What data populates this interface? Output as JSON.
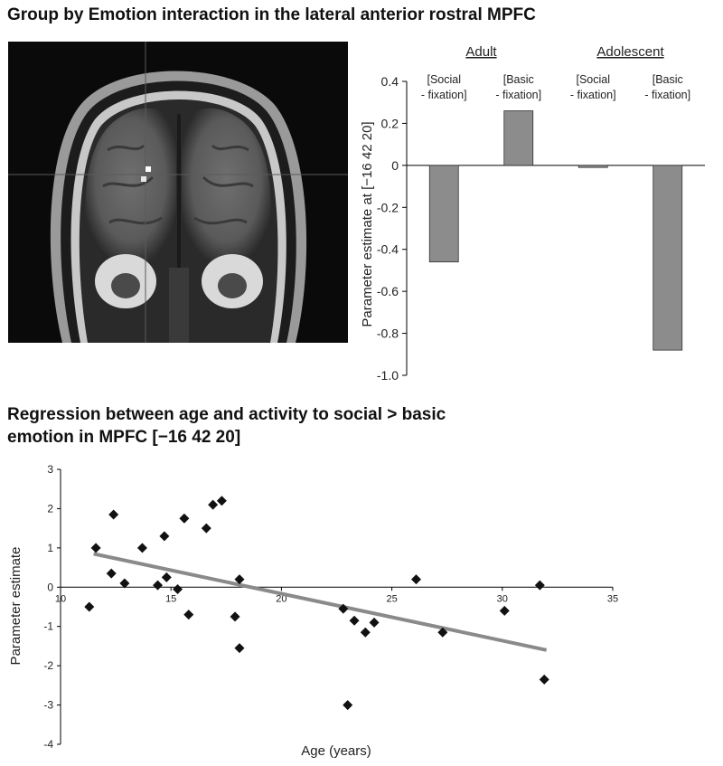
{
  "titles": {
    "top": "Group by Emotion interaction in the lateral anterior rostral MPFC",
    "bottom_line1": "Regression between age and activity to social > basic",
    "bottom_line2": "emotion in MPFC [−16 42 20]"
  },
  "colors": {
    "bar_fill": "#8c8c8c",
    "regression_line": "#8a8a8a",
    "points": "#111111"
  },
  "chart_data": [
    {
      "type": "bar",
      "ylabel": "Parameter estimate at [−16 42 20]",
      "ylim": [
        -1.0,
        0.4
      ],
      "yticks": [
        0.4,
        0.2,
        0,
        -0.2,
        -0.4,
        -0.6,
        -0.8,
        -1.0
      ],
      "ytick_labels": [
        "0.4",
        "0.2",
        "0",
        "-0.2",
        "-0.4",
        "-0.6",
        "-0.8",
        "-1.0"
      ],
      "groups": [
        {
          "name": "Adult",
          "categories": [
            [
              "[Social",
              "- fixation]"
            ],
            [
              "[Basic",
              "- fixation]"
            ]
          ]
        },
        {
          "name": "Adolescent",
          "categories": [
            [
              "[Social",
              "- fixation]"
            ],
            [
              "[Basic",
              "- fixation]"
            ]
          ]
        }
      ],
      "values": [
        -0.46,
        0.26,
        -0.01,
        -0.88
      ]
    },
    {
      "type": "scatter",
      "xlabel": "Age (years)",
      "ylabel": "Parameter estimate",
      "xlim": [
        10,
        35
      ],
      "ylim": [
        -4,
        3
      ],
      "xticks": [
        10,
        15,
        20,
        25,
        30,
        35
      ],
      "yticks": [
        3,
        2,
        1,
        0,
        -1,
        -2,
        -3,
        -4
      ],
      "points": [
        [
          11.3,
          -0.5
        ],
        [
          11.6,
          1.0
        ],
        [
          12.3,
          0.35
        ],
        [
          12.4,
          1.85
        ],
        [
          12.9,
          0.1
        ],
        [
          13.7,
          1.0
        ],
        [
          14.4,
          0.05
        ],
        [
          14.7,
          1.3
        ],
        [
          14.8,
          0.25
        ],
        [
          15.3,
          -0.05
        ],
        [
          15.6,
          1.75
        ],
        [
          15.8,
          -0.7
        ],
        [
          16.6,
          1.5
        ],
        [
          16.9,
          2.1
        ],
        [
          17.3,
          2.2
        ],
        [
          17.9,
          -0.75
        ],
        [
          18.1,
          0.2
        ],
        [
          18.1,
          -1.55
        ],
        [
          22.8,
          -0.55
        ],
        [
          23.0,
          -3.0
        ],
        [
          23.3,
          -0.85
        ],
        [
          23.8,
          -1.15
        ],
        [
          24.2,
          -0.9
        ],
        [
          26.1,
          0.2
        ],
        [
          27.3,
          -1.15
        ],
        [
          30.1,
          -0.6
        ],
        [
          31.7,
          0.05
        ],
        [
          31.9,
          -2.35
        ]
      ],
      "regression": {
        "x": [
          11.5,
          32.0
        ],
        "y": [
          0.85,
          -1.6
        ]
      }
    }
  ]
}
